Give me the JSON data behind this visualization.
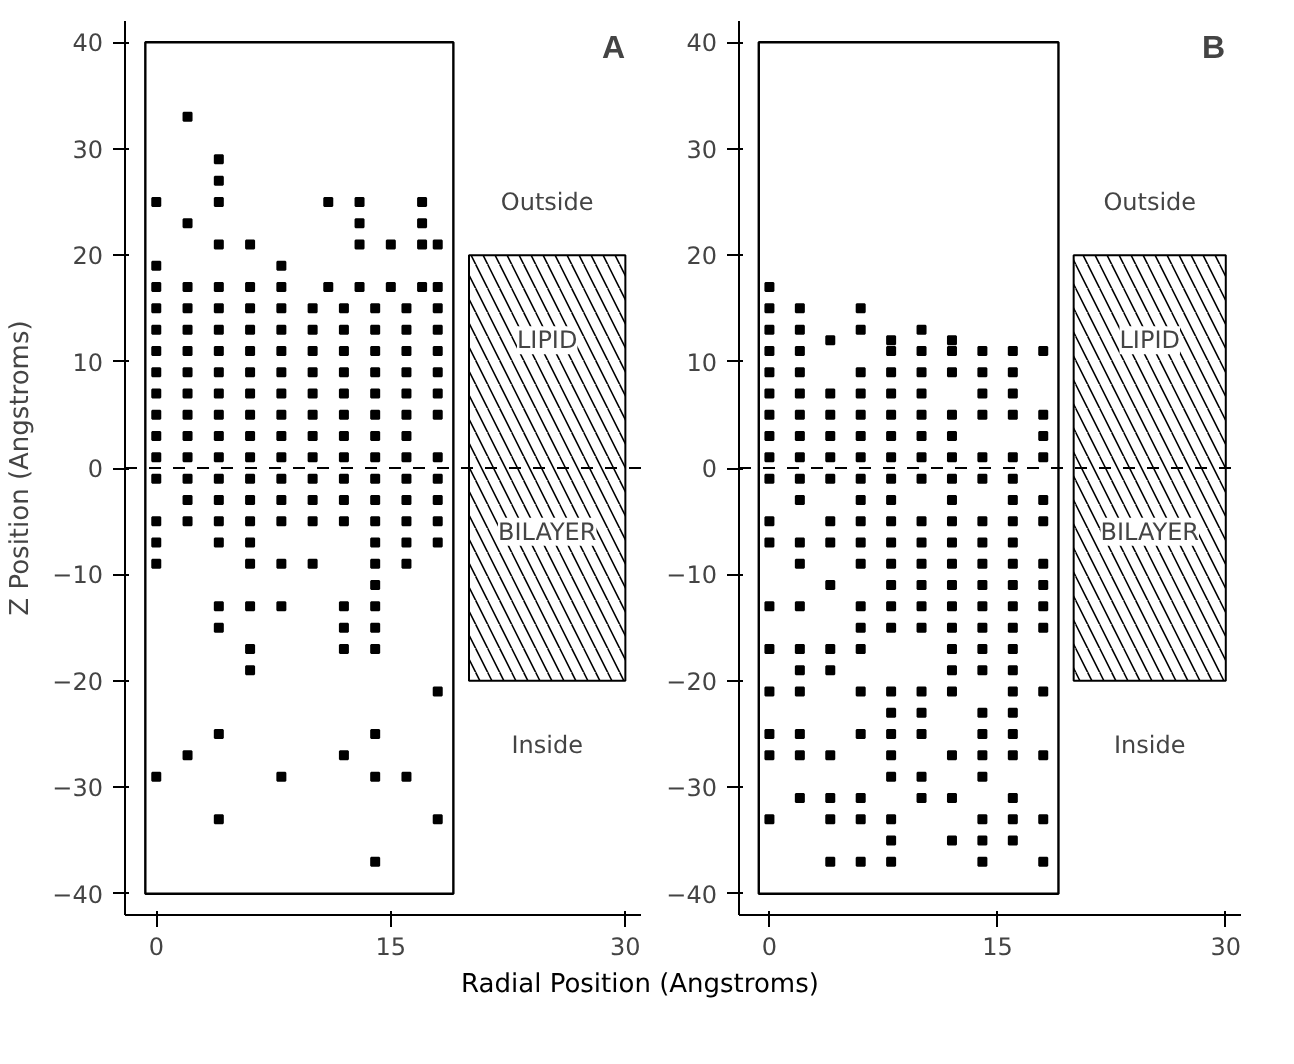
{
  "chart_data": [
    {
      "type": "scatter",
      "title": "A",
      "xlabel": "Radial Position (Angstroms)",
      "ylabel": "Z Position (Angstroms)",
      "marker": "square",
      "xlim": [
        -2,
        31
      ],
      "ylim": [
        -42,
        42
      ],
      "xticks": [
        0,
        15,
        30
      ],
      "yticks": [
        -40,
        -30,
        -20,
        -10,
        0,
        10,
        20,
        30,
        40
      ],
      "grid": false,
      "ref_lines": [
        {
          "axis": "y",
          "value": 0,
          "line_style": "dashed"
        }
      ],
      "bands": [
        {
          "axis": "y",
          "from": -20,
          "to": 20
        }
      ],
      "annotations": [
        "Outside",
        "LIPID",
        "BILAYER",
        "Inside"
      ],
      "series": [
        {
          "color": "#000000",
          "x": [
            2,
            0,
            4,
            4,
            4,
            2,
            11,
            13,
            13,
            17,
            17,
            13,
            15,
            17,
            18,
            4,
            6,
            8,
            0,
            0,
            2,
            4,
            6,
            8,
            11,
            13,
            15,
            17,
            18,
            0,
            2,
            4,
            6,
            8,
            10,
            12,
            14,
            16,
            18,
            0,
            2,
            4,
            6,
            8,
            10,
            12,
            14,
            16,
            18,
            0,
            2,
            4,
            6,
            8,
            10,
            12,
            14,
            16,
            18,
            0,
            2,
            4,
            6,
            8,
            10,
            12,
            14,
            16,
            18,
            0,
            2,
            4,
            6,
            8,
            10,
            12,
            14,
            16,
            18,
            0,
            2,
            4,
            6,
            8,
            10,
            12,
            14,
            16,
            18,
            0,
            2,
            4,
            6,
            8,
            10,
            12,
            14,
            16,
            0,
            2,
            4,
            6,
            8,
            10,
            12,
            14,
            16,
            18,
            0,
            2,
            4,
            6,
            8,
            10,
            12,
            14,
            16,
            18,
            2,
            4,
            6,
            8,
            10,
            12,
            14,
            16,
            18,
            0,
            2,
            4,
            6,
            8,
            10,
            12,
            14,
            16,
            18,
            0,
            4,
            6,
            14,
            16,
            18,
            0,
            6,
            8,
            10,
            14,
            16,
            14,
            4,
            6,
            8,
            12,
            14,
            4,
            12,
            14,
            6,
            12,
            14,
            6,
            18,
            4,
            14,
            2,
            12,
            0,
            8,
            14,
            16,
            4,
            18,
            14
          ],
          "values": [
            33,
            25,
            29,
            27,
            25,
            23,
            25,
            25,
            23,
            25,
            23,
            21,
            21,
            21,
            21,
            21,
            21,
            19,
            19,
            17,
            17,
            17,
            17,
            17,
            17,
            17,
            17,
            17,
            17,
            15,
            15,
            15,
            15,
            15,
            15,
            15,
            15,
            15,
            15,
            13,
            13,
            13,
            13,
            13,
            13,
            13,
            13,
            13,
            13,
            11,
            11,
            11,
            11,
            11,
            11,
            11,
            11,
            11,
            11,
            9,
            9,
            9,
            9,
            9,
            9,
            9,
            9,
            9,
            9,
            7,
            7,
            7,
            7,
            7,
            7,
            7,
            7,
            7,
            7,
            5,
            5,
            5,
            5,
            5,
            5,
            5,
            5,
            5,
            5,
            3,
            3,
            3,
            3,
            3,
            3,
            3,
            3,
            3,
            1,
            1,
            1,
            1,
            1,
            1,
            1,
            1,
            1,
            1,
            -1,
            -1,
            -1,
            -1,
            -1,
            -1,
            -1,
            -1,
            -1,
            -1,
            -3,
            -3,
            -3,
            -3,
            -3,
            -3,
            -3,
            -3,
            -3,
            -5,
            -5,
            -5,
            -5,
            -5,
            -5,
            -5,
            -5,
            -5,
            -5,
            -7,
            -7,
            -7,
            -7,
            -7,
            -7,
            -9,
            -9,
            -9,
            -9,
            -9,
            -9,
            -11,
            -13,
            -13,
            -13,
            -13,
            -13,
            -15,
            -15,
            -15,
            -17,
            -17,
            -17,
            -19,
            -21,
            -25,
            -25,
            -27,
            -27,
            -29,
            -29,
            -29,
            -29,
            -33,
            -33,
            -37
          ]
        }
      ]
    },
    {
      "type": "scatter",
      "title": "B",
      "marker": "square",
      "xlim": [
        -2,
        31
      ],
      "ylim": [
        -42,
        42
      ],
      "xticks": [
        0,
        15,
        30
      ],
      "yticks": [
        -40,
        -30,
        -20,
        -10,
        0,
        10,
        20,
        30,
        40
      ],
      "grid": false,
      "ref_lines": [
        {
          "axis": "y",
          "value": 0,
          "line_style": "dashed"
        }
      ],
      "bands": [
        {
          "axis": "y",
          "from": -20,
          "to": 20
        }
      ],
      "annotations": [
        "Outside",
        "LIPID",
        "BILAYER",
        "Inside"
      ],
      "series": [
        {
          "color": "#000000",
          "x": [
            0,
            0,
            2,
            6,
            0,
            2,
            4,
            6,
            8,
            10,
            12,
            0,
            2,
            8,
            10,
            12,
            14,
            16,
            18,
            0,
            2,
            6,
            8,
            10,
            12,
            14,
            16,
            0,
            2,
            4,
            6,
            8,
            10,
            14,
            16,
            0,
            2,
            4,
            6,
            8,
            10,
            12,
            14,
            16,
            18,
            0,
            2,
            4,
            6,
            8,
            10,
            12,
            18,
            0,
            2,
            4,
            6,
            8,
            10,
            12,
            14,
            16,
            18,
            0,
            2,
            4,
            6,
            8,
            10,
            12,
            14,
            16,
            2,
            6,
            8,
            12,
            16,
            18,
            0,
            4,
            6,
            8,
            10,
            12,
            14,
            16,
            18,
            0,
            2,
            4,
            6,
            8,
            10,
            12,
            14,
            16,
            2,
            6,
            8,
            10,
            12,
            14,
            16,
            18,
            4,
            8,
            10,
            12,
            14,
            16,
            18,
            0,
            2,
            6,
            8,
            10,
            12,
            14,
            16,
            18,
            6,
            8,
            10,
            12,
            14,
            16,
            18,
            0,
            2,
            4,
            6,
            12,
            14,
            16,
            2,
            4,
            12,
            14,
            16,
            0,
            2,
            6,
            8,
            10,
            12,
            16,
            18,
            8,
            10,
            14,
            16,
            0,
            2,
            6,
            8,
            10,
            14,
            16,
            0,
            2,
            4,
            8,
            12,
            14,
            16,
            18,
            8,
            10,
            14,
            2,
            4,
            6,
            10,
            12,
            16,
            0,
            4,
            6,
            8,
            14,
            16,
            18,
            8,
            12,
            14,
            16,
            4,
            6,
            8,
            14,
            18
          ],
          "values": [
            17,
            15,
            15,
            15,
            13,
            13,
            12,
            13,
            12,
            13,
            12,
            11,
            11,
            11,
            11,
            11,
            11,
            11,
            11,
            9,
            9,
            9,
            9,
            9,
            9,
            9,
            9,
            7,
            7,
            7,
            7,
            7,
            7,
            7,
            7,
            5,
            5,
            5,
            5,
            5,
            5,
            5,
            5,
            5,
            5,
            3,
            3,
            3,
            3,
            3,
            3,
            3,
            3,
            1,
            1,
            1,
            1,
            1,
            1,
            1,
            1,
            1,
            1,
            -1,
            -1,
            -1,
            -1,
            -1,
            -1,
            -1,
            -1,
            -1,
            -3,
            -3,
            -3,
            -3,
            -3,
            -3,
            -5,
            -5,
            -5,
            -5,
            -5,
            -5,
            -5,
            -5,
            -5,
            -7,
            -7,
            -7,
            -7,
            -7,
            -7,
            -7,
            -7,
            -7,
            -9,
            -9,
            -9,
            -9,
            -9,
            -9,
            -9,
            -9,
            -11,
            -11,
            -11,
            -11,
            -11,
            -11,
            -11,
            -13,
            -13,
            -13,
            -13,
            -13,
            -13,
            -13,
            -13,
            -13,
            -15,
            -15,
            -15,
            -15,
            -15,
            -15,
            -15,
            -17,
            -17,
            -17,
            -17,
            -17,
            -17,
            -17,
            -19,
            -19,
            -19,
            -19,
            -19,
            -21,
            -21,
            -21,
            -21,
            -21,
            -21,
            -21,
            -21,
            -23,
            -23,
            -23,
            -23,
            -25,
            -25,
            -25,
            -25,
            -25,
            -25,
            -25,
            -27,
            -27,
            -27,
            -27,
            -27,
            -27,
            -27,
            -27,
            -29,
            -29,
            -29,
            -31,
            -31,
            -31,
            -31,
            -31,
            -31,
            -33,
            -33,
            -33,
            -33,
            -33,
            -33,
            -33,
            -35,
            -35,
            -35,
            -35,
            -37,
            -37,
            -37,
            -37,
            -37
          ]
        }
      ]
    }
  ]
}
